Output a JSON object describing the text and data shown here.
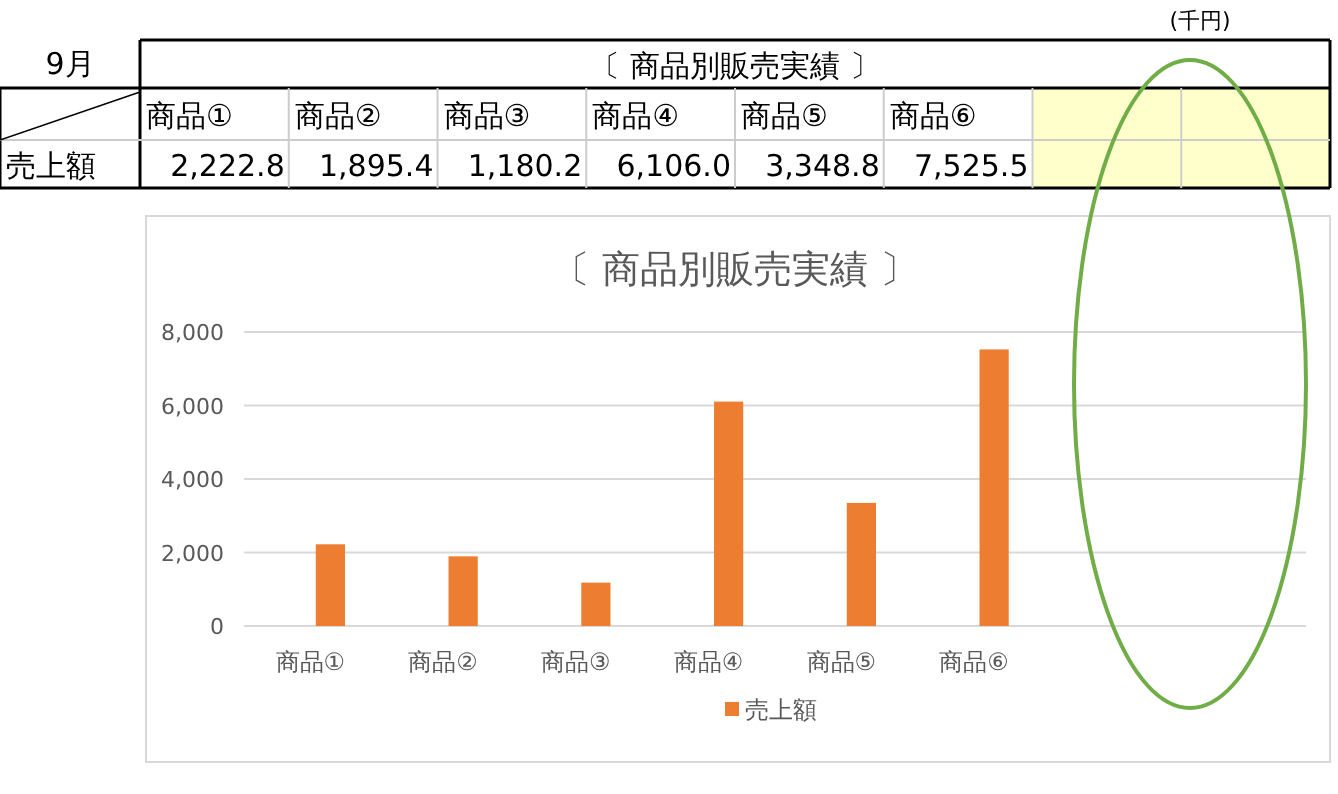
{
  "chart_data": [
    {
      "type": "other",
      "title": "〔 商品別販売実績 〕",
      "categories": [
        "商品①",
        "商品②",
        "商品③",
        "商品④",
        "商品⑤",
        "商品⑥",
        null,
        null
      ],
      "annotations": [
        "9月",
        "(千円)",
        "売上額",
        "2,222.8",
        "1,895.4",
        "1,180.2",
        "6,106.0",
        "3,348.8",
        "7,525.5"
      ]
    },
    {
      "type": "bar",
      "title": "〔 商品別販売実績 〕",
      "categories": [
        "商品①",
        "商品②",
        "商品③",
        "商品④",
        "商品⑤",
        "商品⑥",
        null,
        null
      ],
      "series": [
        {
          "name": "売上額",
          "color": "#ed7d31",
          "values": [
            2222.8,
            1895.4,
            1180.2,
            6106.0,
            3348.8,
            7525.5,
            null,
            null
          ]
        }
      ],
      "ylim": [
        0,
        8000
      ],
      "yticks": [
        {
          "value": 0,
          "label": "0"
        },
        {
          "value": 2000,
          "label": "2,000"
        },
        {
          "value": 4000,
          "label": "4,000"
        },
        {
          "value": 6000,
          "label": "6,000"
        },
        {
          "value": 8000,
          "label": "8,000"
        }
      ],
      "grid": "y",
      "legend": "bottom"
    }
  ]
}
